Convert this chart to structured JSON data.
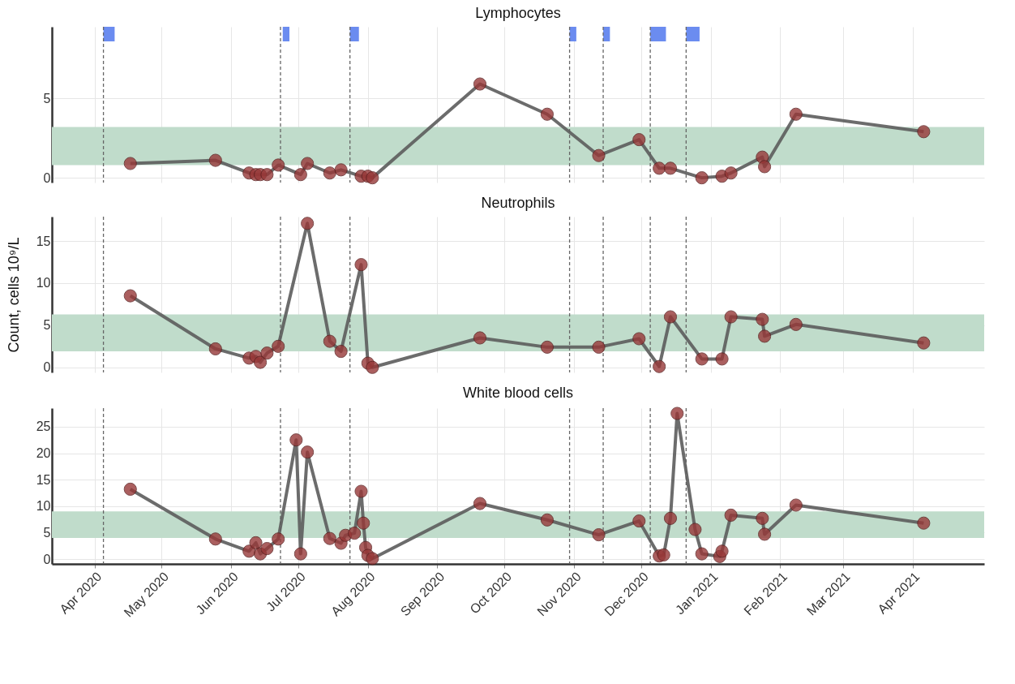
{
  "chart_data": [
    {
      "type": "line",
      "title": "Lymphocytes",
      "tick_labels": "y",
      "grid": true,
      "x": [
        "2020-04-17",
        "2020-05-25",
        "2020-06-09",
        "2020-06-12",
        "2020-06-14",
        "2020-06-17",
        "2020-06-22",
        "2020-07-02",
        "2020-07-05",
        "2020-07-15",
        "2020-07-20",
        "2020-07-29",
        "2020-08-01",
        "2020-08-03",
        "2020-09-20",
        "2020-10-20",
        "2020-11-12",
        "2020-11-30",
        "2020-12-09",
        "2020-12-14",
        "2020-12-28",
        "2021-01-06",
        "2021-01-10",
        "2021-01-24",
        "2021-01-25",
        "2021-02-08",
        "2021-04-06"
      ],
      "series": [
        {
          "type": "line",
          "marker": "none",
          "color": "#5c5c5c",
          "values": [
            0.9,
            1.1,
            0.3,
            0.2,
            0.2,
            0.2,
            0.8,
            0.2,
            0.9,
            0.3,
            0.5,
            0.1,
            0.1,
            0.0,
            5.9,
            4.0,
            1.4,
            2.4,
            0.6,
            0.6,
            0.0,
            0.1,
            0.3,
            1.3,
            0.7,
            4.0,
            2.9
          ]
        },
        {
          "type": "scatter",
          "marker": "circle",
          "color": "#973838",
          "values": [
            0.9,
            1.1,
            0.3,
            0.2,
            0.2,
            0.2,
            0.8,
            0.2,
            0.9,
            0.3,
            0.5,
            0.1,
            0.1,
            0.0,
            5.9,
            4.0,
            1.4,
            2.4,
            0.6,
            0.6,
            0.0,
            0.1,
            0.3,
            1.3,
            0.7,
            4.0,
            2.9
          ]
        }
      ],
      "xlim": [
        "2020-03-13",
        "2021-05-03"
      ],
      "xticks": [
        "2020-04-01",
        "2020-05-01",
        "2020-06-01",
        "2020-07-01",
        "2020-08-01",
        "2020-09-01",
        "2020-10-01",
        "2020-11-01",
        "2020-12-01",
        "2021-01-01",
        "2021-02-01",
        "2021-03-01",
        "2021-04-01"
      ],
      "ylim": [
        -0.3,
        9.5
      ],
      "yticks": [
        0,
        5
      ],
      "ref_lines": [
        {
          "axis": "x",
          "value": "2020-04-05",
          "line_style": "dashed",
          "color": "#666666"
        },
        {
          "axis": "x",
          "value": "2020-06-23",
          "line_style": "dashed",
          "color": "#666666"
        },
        {
          "axis": "x",
          "value": "2020-07-24",
          "line_style": "dashed",
          "color": "#666666"
        },
        {
          "axis": "x",
          "value": "2020-10-30",
          "line_style": "dashed",
          "color": "#666666"
        },
        {
          "axis": "x",
          "value": "2020-11-14",
          "line_style": "dashed",
          "color": "#666666"
        },
        {
          "axis": "x",
          "value": "2020-12-05",
          "line_style": "dashed",
          "color": "#666666"
        },
        {
          "axis": "x",
          "value": "2020-12-21",
          "line_style": "dashed",
          "color": "#666666"
        }
      ],
      "bands": [
        {
          "axis": "y",
          "from": 0.8,
          "to": 3.2,
          "color": "#c0dccb"
        },
        {
          "axis": "x",
          "from": "2020-04-05",
          "to": "2020-04-10",
          "color": "#6b8cf0"
        },
        {
          "axis": "x",
          "from": "2020-06-24",
          "to": "2020-06-27",
          "color": "#6b8cf0"
        },
        {
          "axis": "x",
          "from": "2020-07-24",
          "to": "2020-07-28",
          "color": "#6b8cf0"
        },
        {
          "axis": "x",
          "from": "2020-10-30",
          "to": "2020-11-02",
          "color": "#6b8cf0"
        },
        {
          "axis": "x",
          "from": "2020-11-14",
          "to": "2020-11-17",
          "color": "#6b8cf0"
        },
        {
          "axis": "x",
          "from": "2020-12-05",
          "to": "2020-12-12",
          "color": "#6b8cf0"
        },
        {
          "axis": "x",
          "from": "2020-12-21",
          "to": "2020-12-27",
          "color": "#6b8cf0"
        }
      ]
    },
    {
      "type": "line",
      "title": "Neutrophils",
      "ylabel": "Count, cells 10⁹/L",
      "tick_labels": "y",
      "grid": true,
      "x": [
        "2020-04-17",
        "2020-05-25",
        "2020-06-09",
        "2020-06-12",
        "2020-06-14",
        "2020-06-17",
        "2020-06-22",
        "2020-07-05",
        "2020-07-15",
        "2020-07-20",
        "2020-07-29",
        "2020-08-01",
        "2020-08-03",
        "2020-09-20",
        "2020-10-20",
        "2020-11-12",
        "2020-11-30",
        "2020-12-09",
        "2020-12-14",
        "2020-12-28",
        "2021-01-06",
        "2021-01-10",
        "2021-01-24",
        "2021-01-25",
        "2021-02-08",
        "2021-04-06"
      ],
      "series": [
        {
          "type": "line",
          "marker": "none",
          "color": "#5c5c5c",
          "values": [
            8.5,
            2.2,
            1.1,
            1.3,
            0.6,
            1.7,
            2.5,
            17.1,
            3.1,
            1.9,
            12.2,
            0.5,
            0.0,
            3.5,
            2.4,
            2.4,
            3.4,
            0.1,
            6.0,
            1.0,
            1.0,
            6.0,
            5.7,
            3.7,
            5.1,
            2.9
          ]
        },
        {
          "type": "scatter",
          "marker": "circle",
          "color": "#973838",
          "values": [
            8.5,
            2.2,
            1.1,
            1.3,
            0.6,
            1.7,
            2.5,
            17.1,
            3.1,
            1.9,
            12.2,
            0.5,
            0.0,
            3.5,
            2.4,
            2.4,
            3.4,
            0.1,
            6.0,
            1.0,
            1.0,
            6.0,
            5.7,
            3.7,
            5.1,
            2.9
          ]
        }
      ],
      "xlim": [
        "2020-03-13",
        "2021-05-03"
      ],
      "xticks": [
        "2020-04-01",
        "2020-05-01",
        "2020-06-01",
        "2020-07-01",
        "2020-08-01",
        "2020-09-01",
        "2020-10-01",
        "2020-11-01",
        "2020-12-01",
        "2021-01-01",
        "2021-02-01",
        "2021-03-01",
        "2021-04-01"
      ],
      "ylim": [
        -0.6,
        17.9
      ],
      "yticks": [
        0,
        5,
        10,
        15
      ],
      "ref_lines": [
        {
          "axis": "x",
          "value": "2020-04-05",
          "line_style": "dashed",
          "color": "#666666"
        },
        {
          "axis": "x",
          "value": "2020-06-23",
          "line_style": "dashed",
          "color": "#666666"
        },
        {
          "axis": "x",
          "value": "2020-07-24",
          "line_style": "dashed",
          "color": "#666666"
        },
        {
          "axis": "x",
          "value": "2020-10-30",
          "line_style": "dashed",
          "color": "#666666"
        },
        {
          "axis": "x",
          "value": "2020-11-14",
          "line_style": "dashed",
          "color": "#666666"
        },
        {
          "axis": "x",
          "value": "2020-12-05",
          "line_style": "dashed",
          "color": "#666666"
        },
        {
          "axis": "x",
          "value": "2020-12-21",
          "line_style": "dashed",
          "color": "#666666"
        }
      ],
      "bands": [
        {
          "axis": "y",
          "from": 1.9,
          "to": 6.3,
          "color": "#c0dccb"
        }
      ]
    },
    {
      "type": "line",
      "title": "White blood cells",
      "grid": true,
      "x": [
        "2020-04-17",
        "2020-05-25",
        "2020-06-09",
        "2020-06-12",
        "2020-06-14",
        "2020-06-17",
        "2020-06-22",
        "2020-06-30",
        "2020-07-02",
        "2020-07-05",
        "2020-07-15",
        "2020-07-20",
        "2020-07-22",
        "2020-07-26",
        "2020-07-29",
        "2020-07-30",
        "2020-07-31",
        "2020-08-01",
        "2020-08-03",
        "2020-09-20",
        "2020-10-20",
        "2020-11-12",
        "2020-11-30",
        "2020-12-09",
        "2020-12-11",
        "2020-12-14",
        "2020-12-17",
        "2020-12-25",
        "2020-12-28",
        "2021-01-05",
        "2021-01-06",
        "2021-01-10",
        "2021-01-24",
        "2021-01-25",
        "2021-02-08",
        "2021-04-06"
      ],
      "series": [
        {
          "type": "line",
          "marker": "none",
          "color": "#5c5c5c",
          "values": [
            13.2,
            3.8,
            1.5,
            3.1,
            1.0,
            2.0,
            3.8,
            22.5,
            1.0,
            20.2,
            3.9,
            3.0,
            4.5,
            4.9,
            12.8,
            6.8,
            2.2,
            0.7,
            0.1,
            10.5,
            7.4,
            4.6,
            7.2,
            0.6,
            0.8,
            7.7,
            27.5,
            5.6,
            1.0,
            0.5,
            1.5,
            8.3,
            7.7,
            4.7,
            10.2,
            6.8
          ]
        },
        {
          "type": "scatter",
          "marker": "circle",
          "color": "#973838",
          "values": [
            13.2,
            3.8,
            1.5,
            3.1,
            1.0,
            2.0,
            3.8,
            22.5,
            1.0,
            20.2,
            3.9,
            3.0,
            4.5,
            4.9,
            12.8,
            6.8,
            2.2,
            0.7,
            0.1,
            10.5,
            7.4,
            4.6,
            7.2,
            0.6,
            0.8,
            7.7,
            27.5,
            5.6,
            1.0,
            0.5,
            1.5,
            8.3,
            7.7,
            4.7,
            10.2,
            6.8
          ]
        }
      ],
      "xlim": [
        "2020-03-13",
        "2021-05-03"
      ],
      "xticks": [
        {
          "value": "2020-04-01",
          "label": "Apr 2020"
        },
        {
          "value": "2020-05-01",
          "label": "May 2020"
        },
        {
          "value": "2020-06-01",
          "label": "Jun 2020"
        },
        {
          "value": "2020-07-01",
          "label": "Jul 2020"
        },
        {
          "value": "2020-08-01",
          "label": "Aug 2020"
        },
        {
          "value": "2020-09-01",
          "label": "Sep 2020"
        },
        {
          "value": "2020-10-01",
          "label": "Oct 2020"
        },
        {
          "value": "2020-11-01",
          "label": "Nov 2020"
        },
        {
          "value": "2020-12-01",
          "label": "Dec 2020"
        },
        {
          "value": "2021-01-01",
          "label": "Jan 2021"
        },
        {
          "value": "2021-02-01",
          "label": "Feb 2021"
        },
        {
          "value": "2021-03-01",
          "label": "Mar 2021"
        },
        {
          "value": "2021-04-01",
          "label": "Apr 2021"
        }
      ],
      "ylim": [
        -0.9,
        28.5
      ],
      "yticks": [
        0,
        5,
        10,
        15,
        20,
        25
      ],
      "ref_lines": [
        {
          "axis": "x",
          "value": "2020-04-05",
          "line_style": "dashed",
          "color": "#666666"
        },
        {
          "axis": "x",
          "value": "2020-06-23",
          "line_style": "dashed",
          "color": "#666666"
        },
        {
          "axis": "x",
          "value": "2020-07-24",
          "line_style": "dashed",
          "color": "#666666"
        },
        {
          "axis": "x",
          "value": "2020-10-30",
          "line_style": "dashed",
          "color": "#666666"
        },
        {
          "axis": "x",
          "value": "2020-11-14",
          "line_style": "dashed",
          "color": "#666666"
        },
        {
          "axis": "x",
          "value": "2020-12-05",
          "line_style": "dashed",
          "color": "#666666"
        },
        {
          "axis": "x",
          "value": "2020-12-21",
          "line_style": "dashed",
          "color": "#666666"
        }
      ],
      "bands": [
        {
          "axis": "y",
          "from": 4.0,
          "to": 9.0,
          "color": "#c0dccb"
        }
      ]
    }
  ]
}
